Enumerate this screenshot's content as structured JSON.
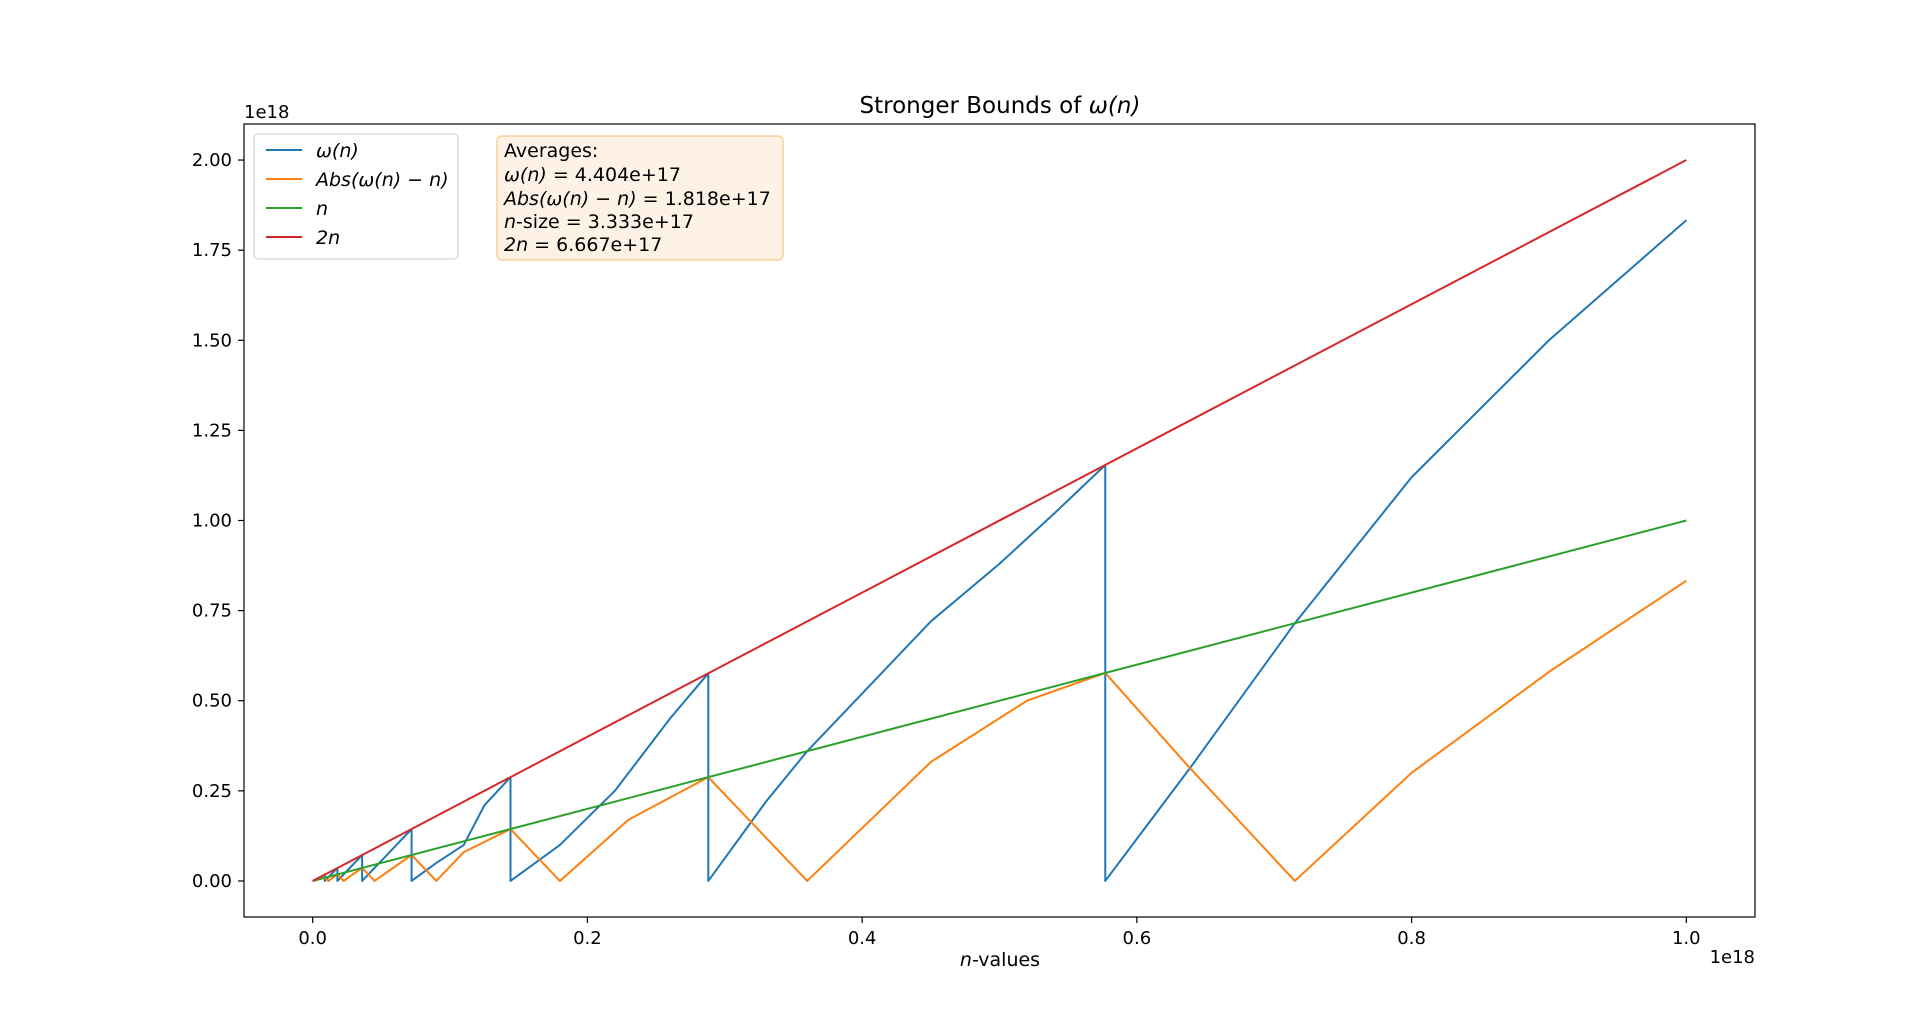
{
  "chart_data": {
    "type": "line",
    "title_prefix": "Stronger Bounds of ",
    "title_math": "ω(n)",
    "xlabel_var": "n",
    "xlabel_rest": "-values",
    "x_offset_text": "1e18",
    "y_offset_text": "1e18",
    "xlim": [
      -0.05,
      1.05
    ],
    "ylim": [
      -0.1,
      2.1
    ],
    "x_ticks": [
      0.0,
      0.2,
      0.4,
      0.6,
      0.8,
      1.0
    ],
    "x_tick_labels": [
      "0.0",
      "0.2",
      "0.4",
      "0.6",
      "0.8",
      "1.0"
    ],
    "y_ticks": [
      0.0,
      0.25,
      0.5,
      0.75,
      1.0,
      1.25,
      1.5,
      1.75,
      2.0
    ],
    "y_tick_labels": [
      "0.00",
      "0.25",
      "0.50",
      "0.75",
      "1.00",
      "1.25",
      "1.50",
      "1.75",
      "2.00"
    ],
    "legend_position": "upper-left",
    "grid": false,
    "series": [
      {
        "name": "ω(n)",
        "color": "#1f77b4",
        "points": [
          [
            0.0,
            0.0
          ],
          [
            0.0088,
            0.0176
          ],
          [
            0.0088,
            0.0
          ],
          [
            0.018,
            0.036
          ],
          [
            0.018,
            0.0
          ],
          [
            0.036,
            0.072
          ],
          [
            0.036,
            0.0
          ],
          [
            0.072,
            0.144
          ],
          [
            0.072,
            0.0
          ],
          [
            0.09,
            0.05
          ],
          [
            0.11,
            0.1
          ],
          [
            0.125,
            0.21
          ],
          [
            0.144,
            0.288
          ],
          [
            0.144,
            0.0
          ],
          [
            0.18,
            0.1
          ],
          [
            0.22,
            0.25
          ],
          [
            0.26,
            0.45
          ],
          [
            0.288,
            0.576
          ],
          [
            0.288,
            0.0
          ],
          [
            0.33,
            0.22
          ],
          [
            0.36,
            0.36
          ],
          [
            0.4,
            0.52
          ],
          [
            0.45,
            0.72
          ],
          [
            0.5,
            0.88
          ],
          [
            0.54,
            1.02
          ],
          [
            0.577,
            1.154
          ],
          [
            0.577,
            0.0
          ],
          [
            0.64,
            0.32
          ],
          [
            0.715,
            0.715
          ],
          [
            0.8,
            1.12
          ],
          [
            0.9,
            1.5
          ],
          [
            1.0,
            1.833
          ]
        ]
      },
      {
        "name": "Abs(ω(n) − n)",
        "color": "#ff7f0e",
        "points": [
          [
            0.0,
            0.0
          ],
          [
            0.0088,
            0.0088
          ],
          [
            0.0115,
            0.0
          ],
          [
            0.018,
            0.018
          ],
          [
            0.0225,
            0.0
          ],
          [
            0.036,
            0.036
          ],
          [
            0.045,
            0.0
          ],
          [
            0.072,
            0.072
          ],
          [
            0.09,
            0.0
          ],
          [
            0.11,
            0.08
          ],
          [
            0.144,
            0.144
          ],
          [
            0.18,
            0.0
          ],
          [
            0.23,
            0.17
          ],
          [
            0.288,
            0.288
          ],
          [
            0.36,
            0.0
          ],
          [
            0.45,
            0.33
          ],
          [
            0.52,
            0.5
          ],
          [
            0.577,
            0.577
          ],
          [
            0.637,
            0.32
          ],
          [
            0.715,
            0.0
          ],
          [
            0.8,
            0.3
          ],
          [
            0.9,
            0.58
          ],
          [
            1.0,
            0.833
          ]
        ]
      },
      {
        "name": "n",
        "color": "#2ca02c",
        "points": [
          [
            0.0,
            0.0
          ],
          [
            1.0,
            1.0
          ]
        ]
      },
      {
        "name": "2n",
        "color": "#d62728",
        "points": [
          [
            0.0,
            0.0
          ],
          [
            1.0,
            2.0
          ]
        ]
      }
    ],
    "legend": [
      {
        "label": "ω(n)",
        "color": "#1f77b4"
      },
      {
        "label": "Abs(ω(n) − n)",
        "color": "#ff7f0e"
      },
      {
        "label": "n",
        "color": "#2ca02c"
      },
      {
        "label": "2n",
        "color": "#d62728"
      }
    ],
    "stats_box": {
      "heading": "Averages:",
      "lines": [
        {
          "math": "ω(n)",
          "text": " = 4.404e+17"
        },
        {
          "math": "Abs(ω(n) − n)",
          "text": " = 1.818e+17"
        },
        {
          "math": "n",
          "text": "-size = 3.333e+17"
        },
        {
          "math": "2n",
          "text": " = 6.667e+17"
        }
      ]
    }
  }
}
